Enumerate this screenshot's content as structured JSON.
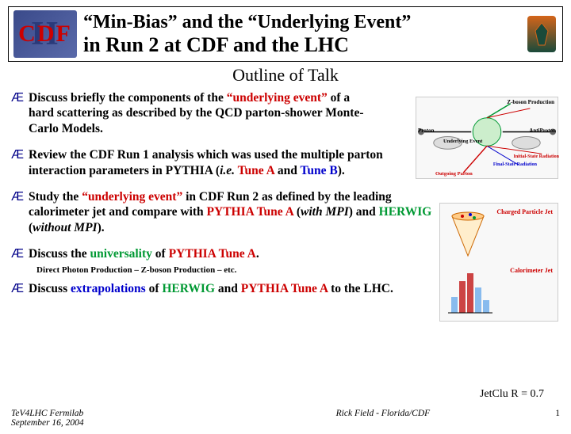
{
  "logo": {
    "front": "CDF",
    "back": "II"
  },
  "title": {
    "line1": "“Min-Bias” and the “Underlying Event”",
    "line2": "in Run 2 at CDF and the LHC"
  },
  "subtitle": "Outline of Talk",
  "bullets": [
    {
      "html": "Discuss briefly the components of the <span class='hl-red'>“underlying event”</span> of a hard scattering as described by the QCD parton-shower Monte-Carlo Models.",
      "class": "w1"
    },
    {
      "html": "Review the CDF Run 1 analysis which was used the multiple parton interaction parameters in PYTHIA (<i>i.e.</i> <span class='hl-red'>Tune A</span> and <span class='hl-blue'>Tune B</span>).",
      "class": "w2"
    },
    {
      "html": "Study the <span class='hl-red'>“underlying event”</span> in CDF Run 2 as defined by the leading calorimeter jet and compare with <span class='hl-red'>PYTHIA Tune A</span> (<i>with MPI</i>) and <span class='hl-green'>HERWIG</span> (<i>without MPI</i>).",
      "class": "w3"
    },
    {
      "html": "Discuss the <span class='hl-green'>universality</span> of <span class='hl-red'>PYTHIA Tune A</span>.",
      "class": "w4"
    },
    {
      "html": "Discuss <span class='hl-blue'>extrapolations</span> of <span class='hl-green'>HERWIG</span> and <span class='hl-red'>PYTHIA Tune A</span> to the LHC.",
      "class": "w5"
    }
  ],
  "subnote": "Direct Photon Production – Z-boson Production – etc.",
  "figure1": {
    "title": "Z-boson Production",
    "proton": "Proton",
    "antiproton": "AntiProton",
    "underlying": "Underlying Event",
    "underlying2": "Underlying Event",
    "finalstate": "Final-State\nRadiation",
    "initialstate": "Initial-State\nRadiation",
    "outgoing": "Outgoing Parton",
    "zboson": "Z-boson",
    "ptz": "PT(Z)"
  },
  "figure2": {
    "label1": "Charged Particle Jet",
    "label2": "Calorimeter Jet"
  },
  "jetclu": "JetClu R = 0.7",
  "footer": {
    "venue": "TeV4LHC Fermilab",
    "date": "September 16, 2004",
    "author": "Rick Field - Florida/CDF",
    "page": "1"
  },
  "colors": {
    "red": "#cc0000",
    "green": "#009933",
    "blue": "#0000cc",
    "navy": "#000088"
  }
}
